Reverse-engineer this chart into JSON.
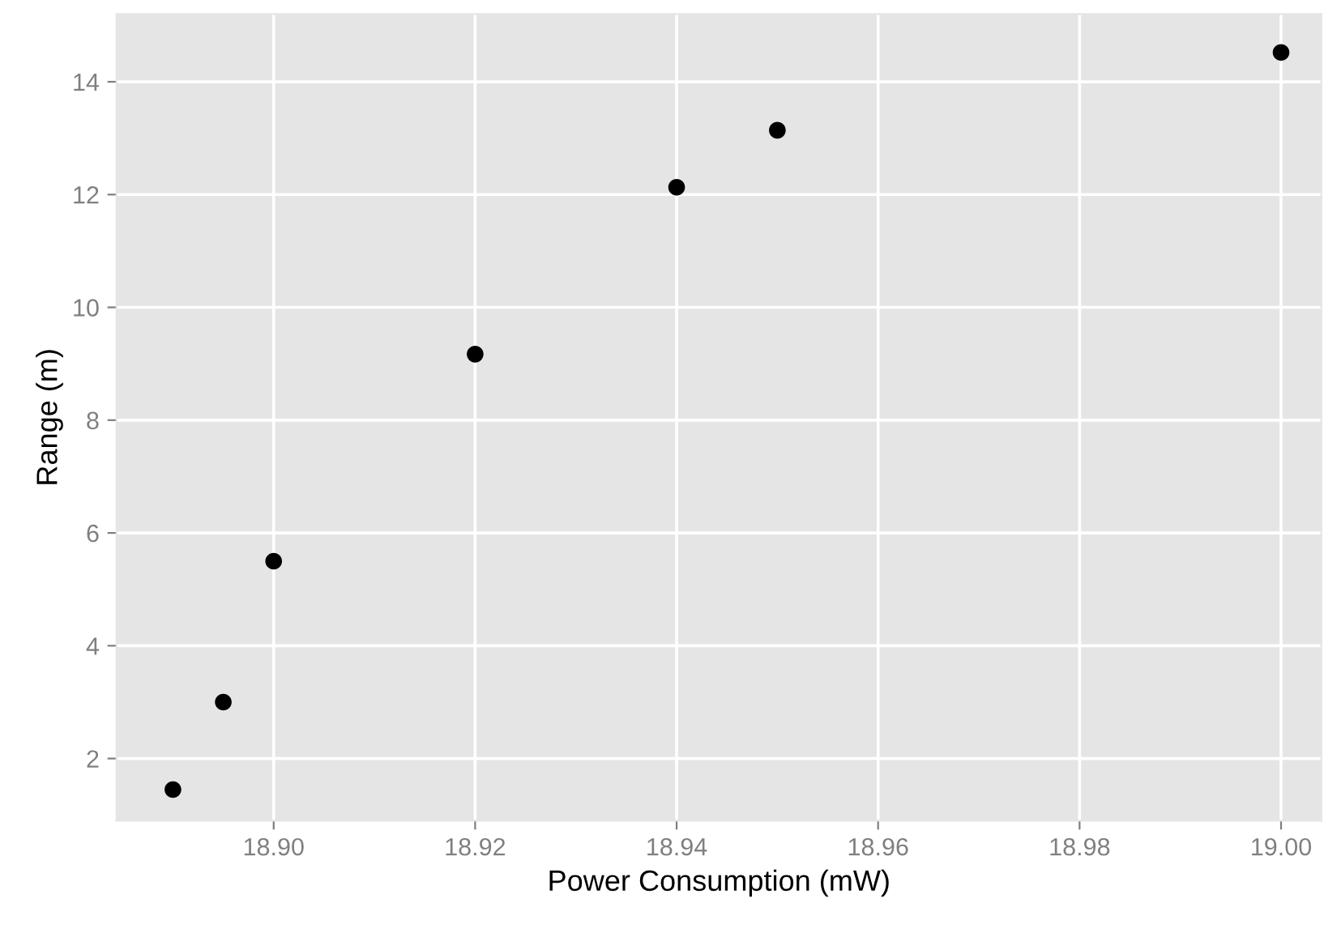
{
  "chart_data": {
    "type": "scatter",
    "xlabel": "Power Consumption (mW)",
    "ylabel": "Range (m)",
    "x": [
      18.89,
      18.895,
      18.9,
      18.92,
      18.94,
      18.95,
      19.0
    ],
    "series": [
      {
        "color": "#000000",
        "values": [
          1.45,
          3.0,
          5.5,
          9.17,
          12.13,
          13.14,
          14.52
        ]
      }
    ],
    "xlim": [
      18.8844,
      19.004
    ],
    "ylim": [
      0.9,
      15.2
    ],
    "xticks": [
      {
        "value": 18.9,
        "label": "18.90"
      },
      {
        "value": 18.92,
        "label": "18.92"
      },
      {
        "value": 18.94,
        "label": "18.94"
      },
      {
        "value": 18.96,
        "label": "18.96"
      },
      {
        "value": 18.98,
        "label": "18.98"
      },
      {
        "value": 19.0,
        "label": "19.00"
      }
    ],
    "yticks": [
      2,
      4,
      6,
      8,
      10,
      12,
      14
    ],
    "grid": true,
    "marker": "circle"
  }
}
